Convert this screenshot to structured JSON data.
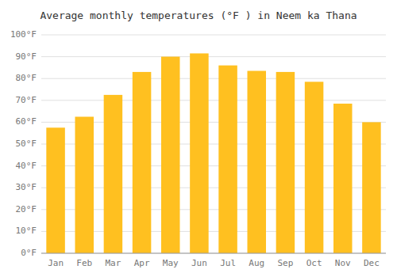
{
  "chart_data": {
    "type": "bar",
    "title": "Average monthly temperatures (°F ) in Neem ka Thana",
    "categories": [
      "Jan",
      "Feb",
      "Mar",
      "Apr",
      "May",
      "Jun",
      "Jul",
      "Aug",
      "Sep",
      "Oct",
      "Nov",
      "Dec"
    ],
    "values": [
      57.5,
      62.5,
      72.5,
      83,
      90,
      91.5,
      86,
      83.5,
      83,
      78.5,
      68.5,
      60
    ],
    "color": "#FFC020",
    "ylim": [
      0,
      100
    ],
    "yticks": [
      {
        "value": 0,
        "label": "0°F"
      },
      {
        "value": 10,
        "label": "10°F"
      },
      {
        "value": 20,
        "label": "20°F"
      },
      {
        "value": 30,
        "label": "30°F"
      },
      {
        "value": 40,
        "label": "40°F"
      },
      {
        "value": 50,
        "label": "50°F"
      },
      {
        "value": 60,
        "label": "60°F"
      },
      {
        "value": 70,
        "label": "70°F"
      },
      {
        "value": 80,
        "label": "80°F"
      },
      {
        "value": 90,
        "label": "90°F"
      },
      {
        "value": 100,
        "label": "100°F"
      }
    ],
    "grid": true
  }
}
